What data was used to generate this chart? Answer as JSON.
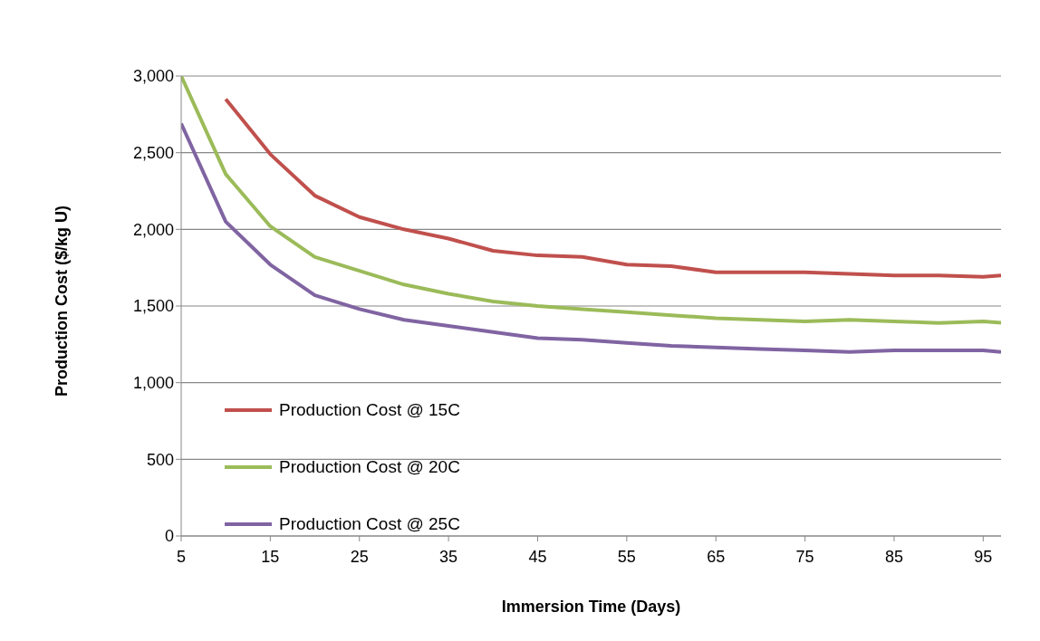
{
  "chart_data": {
    "type": "line",
    "xlabel": "Immersion Time (Days)",
    "ylabel": "Production Cost ($/kg U)",
    "x": [
      5,
      10,
      15,
      20,
      25,
      30,
      35,
      40,
      45,
      50,
      55,
      60,
      65,
      70,
      75,
      80,
      85,
      90,
      95,
      97
    ],
    "series": [
      {
        "name": "Production Cost @ 15C",
        "color": "#c0504d",
        "values": [
          null,
          2850,
          2490,
          2220,
          2080,
          2000,
          1940,
          1860,
          1830,
          1820,
          1770,
          1760,
          1720,
          1720,
          1720,
          1710,
          1700,
          1700,
          1690,
          1700
        ]
      },
      {
        "name": "Production Cost @ 20C",
        "color": "#9bbb59",
        "values": [
          3000,
          2360,
          2020,
          1820,
          1730,
          1640,
          1580,
          1530,
          1500,
          1480,
          1460,
          1440,
          1420,
          1410,
          1400,
          1410,
          1400,
          1390,
          1400,
          1390
        ]
      },
      {
        "name": "Production Cost @ 25C",
        "color": "#8064a2",
        "values": [
          2690,
          2050,
          1770,
          1570,
          1480,
          1410,
          1370,
          1330,
          1290,
          1280,
          1260,
          1240,
          1230,
          1220,
          1210,
          1200,
          1210,
          1210,
          1210,
          1200
        ]
      }
    ],
    "xlim": [
      5,
      97
    ],
    "xticks": [
      5,
      15,
      25,
      35,
      45,
      55,
      65,
      75,
      85,
      95
    ],
    "ylim": [
      0,
      3000
    ],
    "yticks": [
      0,
      500,
      {
        "value": 1000,
        "label": "1,000"
      },
      {
        "value": 1500,
        "label": "1,500"
      },
      {
        "value": 2000,
        "label": "2,000"
      },
      {
        "value": 2500,
        "label": "2,500"
      },
      {
        "value": 3000,
        "label": "3,000"
      }
    ],
    "grid": "y",
    "legend": "bottom left",
    "marker": "none",
    "line_style": "solid"
  }
}
